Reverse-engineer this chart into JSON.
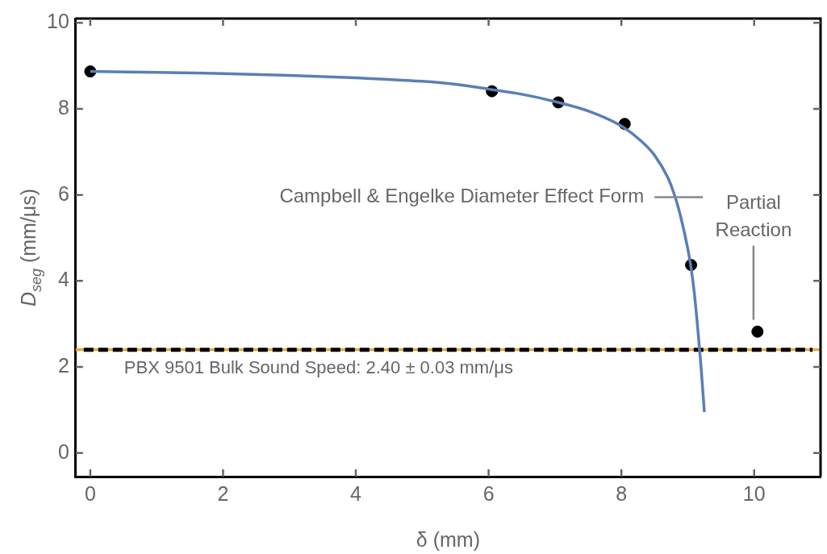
{
  "chart_data": {
    "type": "scatter",
    "xlabel": "δ (mm)",
    "ylabel": "D$_{seg}$ (mm/μs)",
    "xlim": [
      -0.22,
      11
    ],
    "ylim": [
      -0.55,
      10.1
    ],
    "xticks": [
      0,
      2,
      4,
      6,
      8,
      10
    ],
    "yticks": [
      0,
      2,
      4,
      6,
      8,
      10
    ],
    "grid": false,
    "legend": false,
    "marker": "circle",
    "series": [
      {
        "type": "line",
        "color": "#5a7fb6",
        "marker": "none",
        "line_style": "solid",
        "x": [
          0,
          1,
          2,
          3,
          4,
          5,
          5.5,
          6,
          6.5,
          7,
          7.5,
          8,
          8.3,
          8.5,
          8.7,
          8.8,
          8.9,
          9,
          9.05,
          9.1,
          9.15,
          9.2,
          9.25
        ],
        "values": [
          8.87,
          8.85,
          8.82,
          8.78,
          8.72,
          8.64,
          8.57,
          8.46,
          8.34,
          8.17,
          7.95,
          7.6,
          7.25,
          6.92,
          6.4,
          6.0,
          5.45,
          4.75,
          4.3,
          3.7,
          2.9,
          2.0,
          0.95
        ]
      },
      {
        "type": "scatter",
        "color": "#000000",
        "x": [
          0,
          6.05,
          7.05,
          8.05,
          9.05,
          10.05
        ],
        "values": [
          8.87,
          8.41,
          8.15,
          7.65,
          4.37,
          2.82
        ]
      }
    ],
    "ref_lines": [
      {
        "axis": "y",
        "value": 2.4,
        "label": "PBX 9501 Bulk Sound Speed: 2.40 ± 0.03 mm/μs",
        "color": "#000000",
        "line_style": "dashed"
      }
    ],
    "bands": [
      {
        "axis": "y",
        "from": 2.37,
        "to": 2.43,
        "color": "#e8a838"
      }
    ],
    "annotations": [
      "Campbell & Engelke Diameter Effect Form",
      "Partial Reaction"
    ]
  }
}
